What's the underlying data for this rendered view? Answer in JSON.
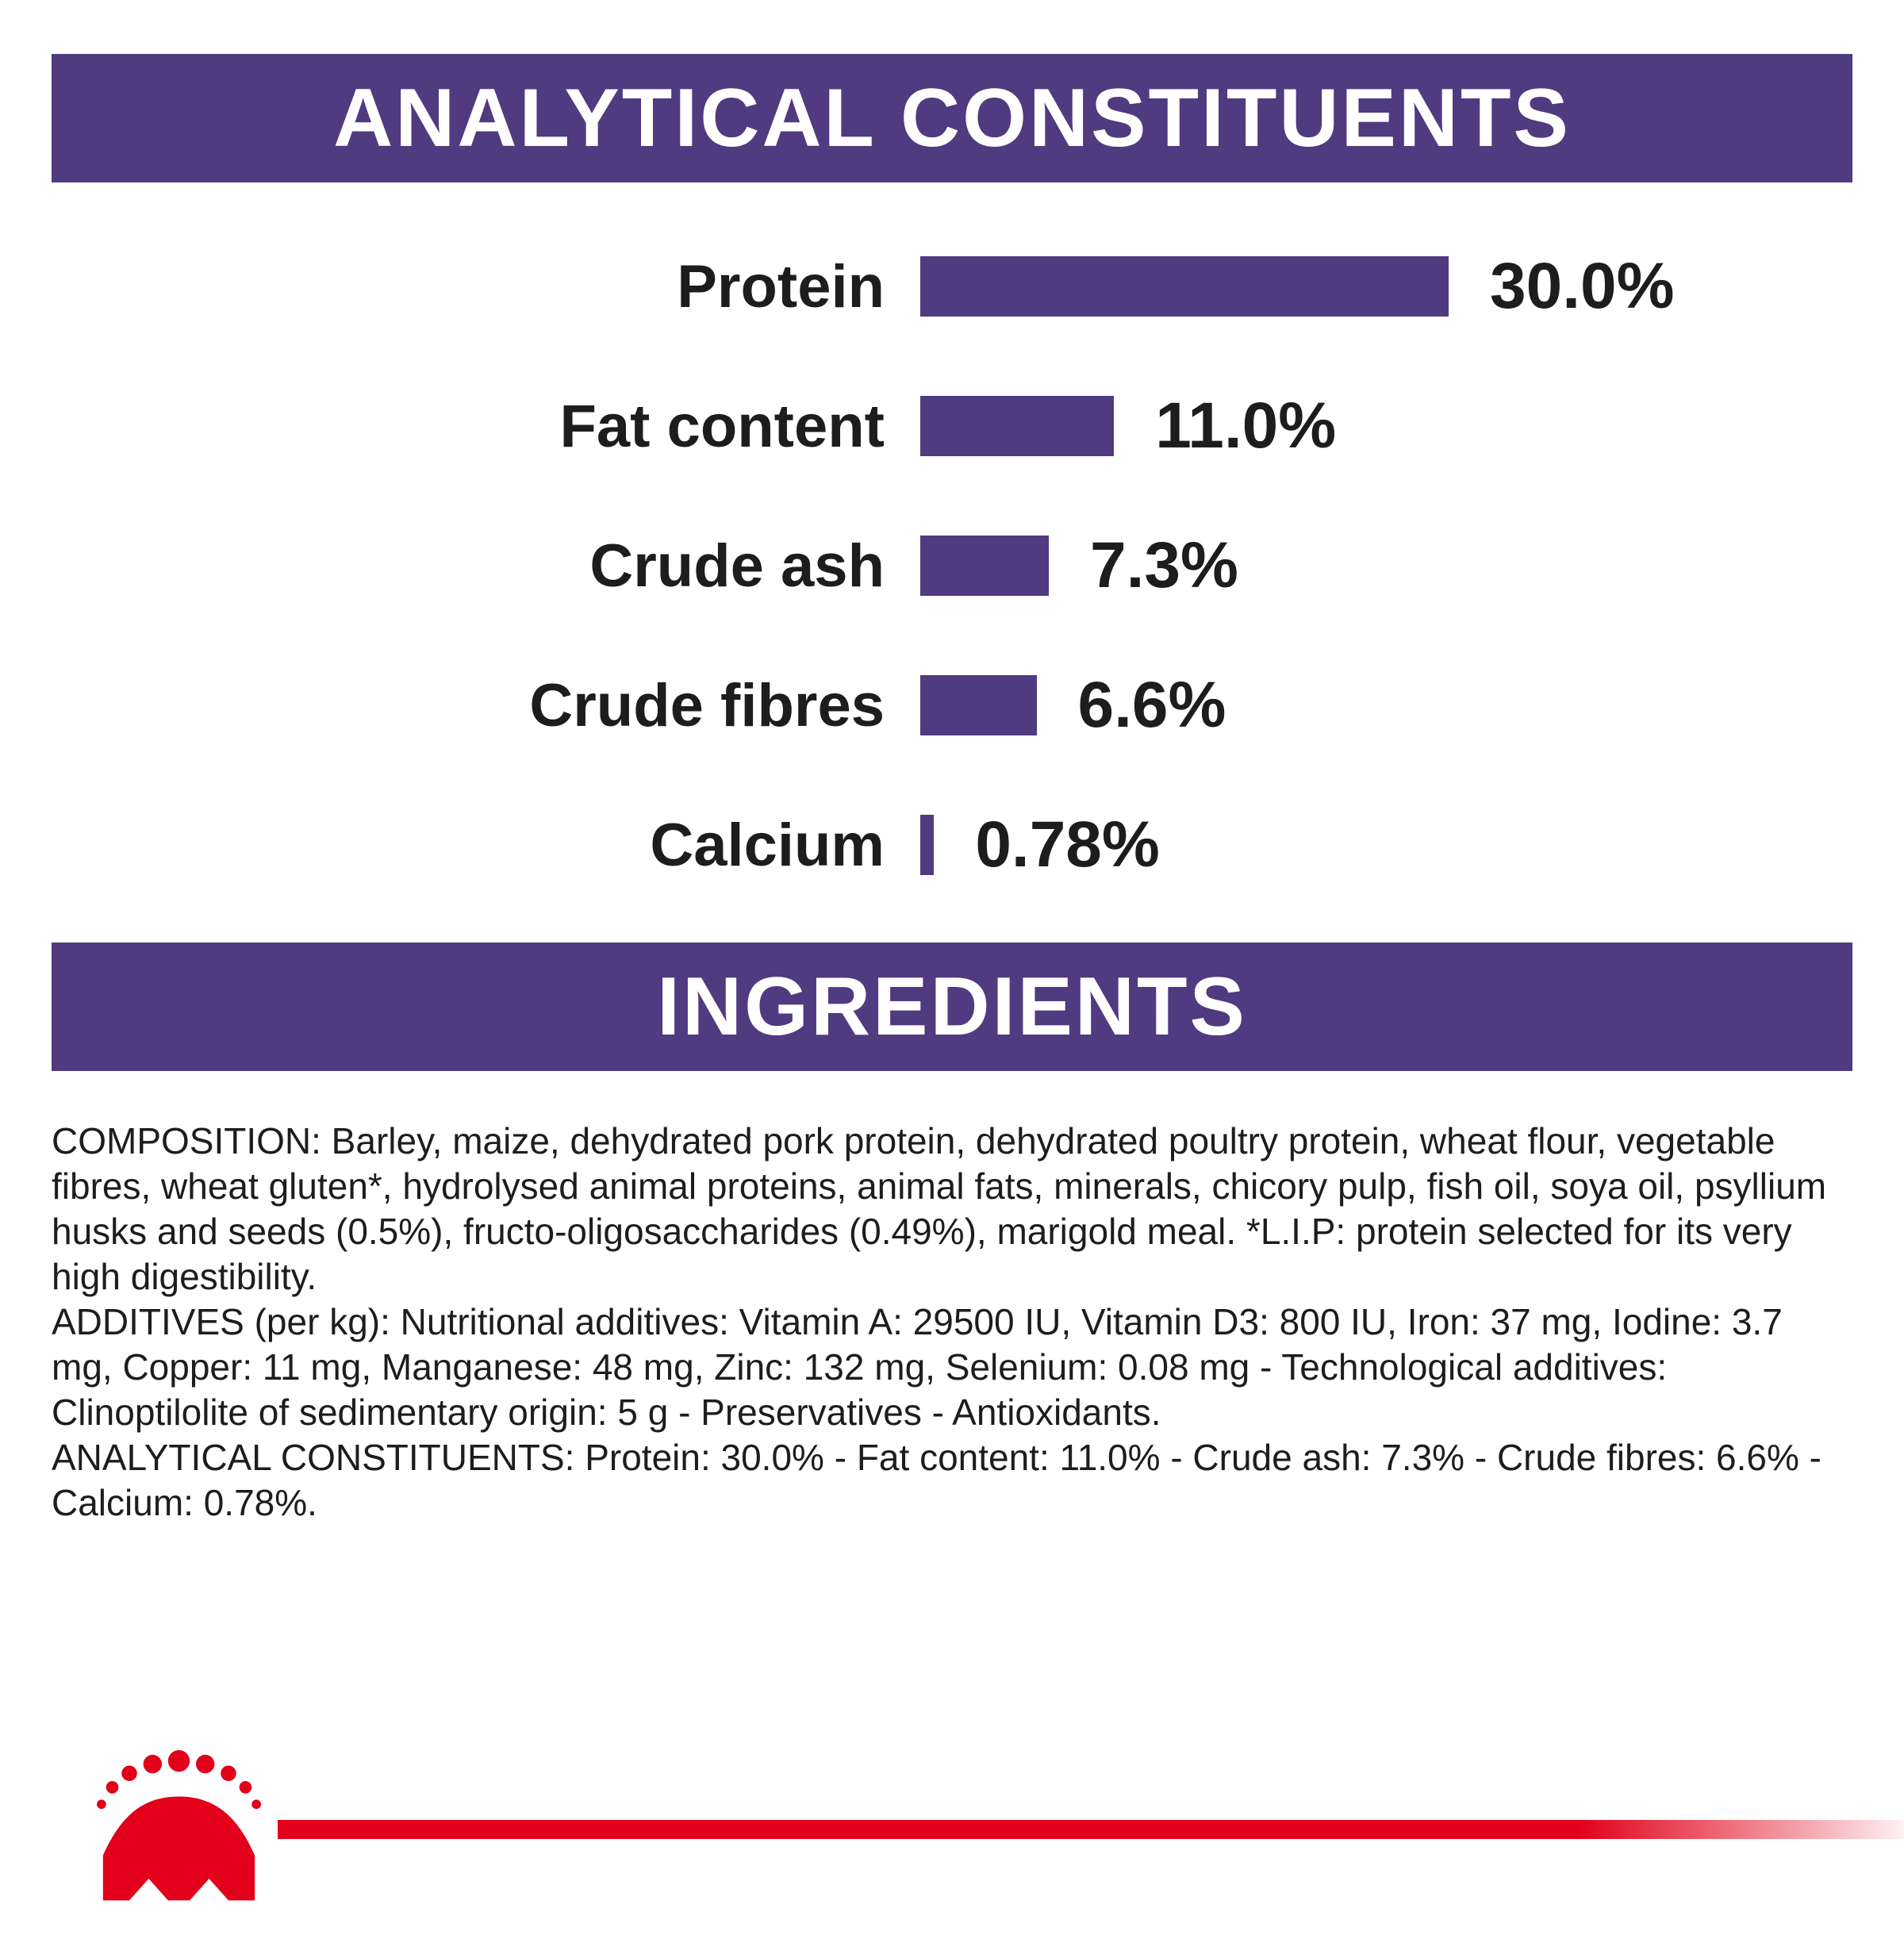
{
  "colors": {
    "purple": "#503a80",
    "red": "#e2001a",
    "text": "#1d1d1b"
  },
  "sections": {
    "analytical": {
      "title": "ANALYTICAL CONSTITUENTS"
    },
    "ingredients": {
      "title": "INGREDIENTS"
    }
  },
  "chart_data": {
    "type": "bar",
    "orientation": "horizontal",
    "title": "ANALYTICAL CONSTITUENTS",
    "categories": [
      "Protein",
      "Fat content",
      "Crude ash",
      "Crude fibres",
      "Calcium"
    ],
    "values": [
      30.0,
      11.0,
      7.3,
      6.6,
      0.78
    ],
    "value_labels": [
      "30.0%",
      "11.0%",
      "7.3%",
      "6.6%",
      "0.78%"
    ],
    "unit": "%",
    "xlim": [
      0,
      32
    ],
    "grid": false,
    "legend": "none",
    "bar_color": "#503a80"
  },
  "body": {
    "paragraphs": [
      "COMPOSITION: Barley, maize, dehydrated pork protein, dehydrated poultry protein, wheat flour, vegetable fibres, wheat gluten*, hydrolysed animal proteins, animal fats, minerals, chicory pulp, fish oil, soya oil, psyllium husks and seeds (0.5%), fructo-oligosaccharides (0.49%), marigold meal. *L.I.P: protein selected for its very high digestibility.",
      "ADDITIVES (per kg): Nutritional additives: Vitamin A: 29500 IU, Vitamin D3: 800 IU, Iron: 37 mg, Iodine: 3.7 mg, Copper: 11 mg, Manganese: 48 mg, Zinc: 132 mg, Selenium: 0.08 mg - Technological additives: Clinoptilolite of sedimentary origin: 5 g - Preservatives - Antioxidants.",
      "ANALYTICAL CONSTITUENTS: Protein: 30.0% - Fat content: 11.0% - Crude ash: 7.3% - Crude fibres: 6.6% - Calcium: 0.78%."
    ]
  },
  "footer": {
    "logo_icon": "royal-canin-crown-icon"
  }
}
